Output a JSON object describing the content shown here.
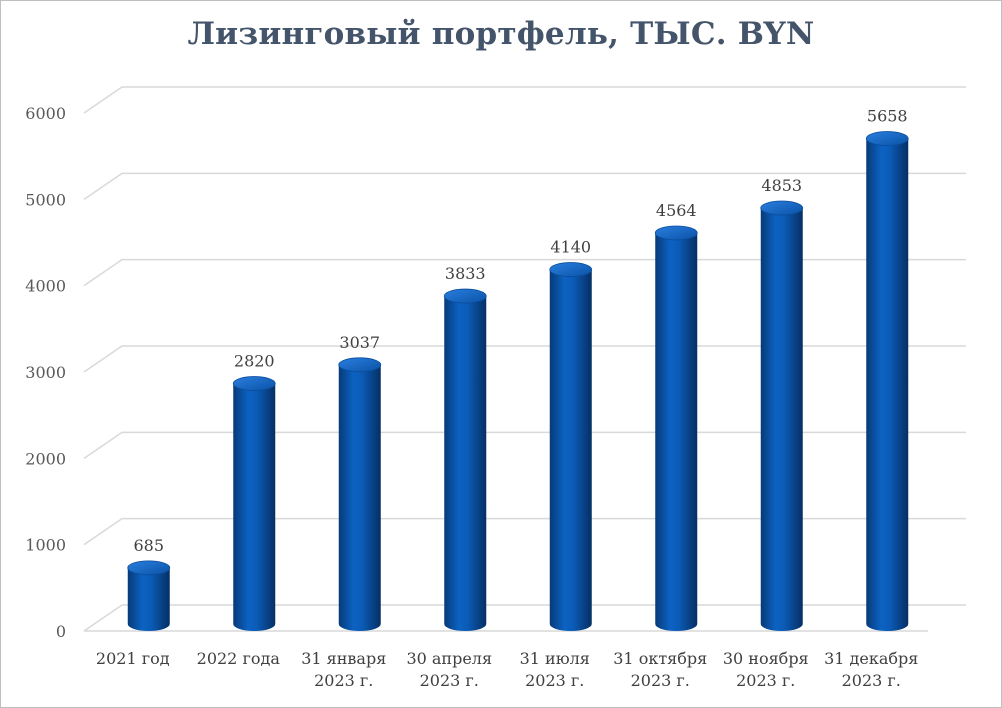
{
  "chart_data": {
    "type": "bar",
    "title": "Лизинговый портфель, ТЫС. BYN",
    "xlabel": "",
    "ylabel": "",
    "ylim": [
      0,
      6000
    ],
    "yticks": [
      "0",
      "1000",
      "2000",
      "3000",
      "4000",
      "5000",
      "6000"
    ],
    "grid": true,
    "style": "3d-cylinder",
    "categories": [
      [
        "2021 год"
      ],
      [
        "2022 года"
      ],
      [
        "31 января",
        "2023 г."
      ],
      [
        "30 апреля",
        "2023 г."
      ],
      [
        "31 июля",
        "2023 г."
      ],
      [
        "31 октября",
        "2023 г."
      ],
      [
        "30 ноября",
        "2023 г."
      ],
      [
        "31 декабря",
        "2023 г."
      ]
    ],
    "values": [
      685,
      2820,
      3037,
      3833,
      4140,
      4564,
      4853,
      5658
    ],
    "data_labels": [
      "685",
      "2820",
      "3037",
      "3833",
      "4140",
      "4564",
      "4853",
      "5658"
    ],
    "colors": {
      "bar": "#0a5bb5",
      "bar_dark": "#073e80",
      "bar_top": "#1b6fd0",
      "grid": "#d9d9d9",
      "title": "#44546a"
    }
  }
}
